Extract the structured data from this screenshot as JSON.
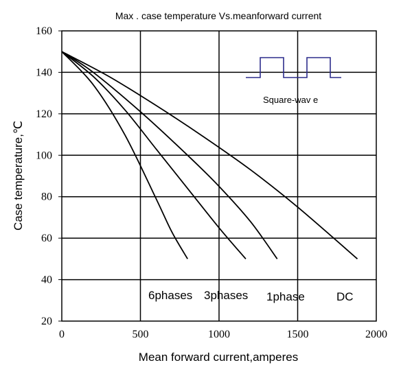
{
  "chart_data": {
    "type": "line",
    "title": "Max . case temperature Vs.meanforward current",
    "xlabel": "Mean  forward current,amperes",
    "ylabel": "Case temperature,℃",
    "xlim": [
      0,
      2000
    ],
    "ylim": [
      20,
      160
    ],
    "x_ticks": [
      0,
      500,
      1000,
      1500,
      2000
    ],
    "y_ticks": [
      20,
      40,
      60,
      80,
      100,
      120,
      140,
      160
    ],
    "grid": true,
    "series": [
      {
        "label": "6phases",
        "x": [
          0,
          200,
          400,
          600,
          700,
          800
        ],
        "y": [
          150,
          134,
          110,
          79,
          63,
          50
        ]
      },
      {
        "label": "3phases",
        "x": [
          0,
          200,
          400,
          600,
          800,
          1000,
          1170
        ],
        "y": [
          150,
          138,
          122,
          103,
          84,
          65,
          50
        ]
      },
      {
        "label": "1phase",
        "x": [
          0,
          200,
          500,
          800,
          1000,
          1200,
          1370
        ],
        "y": [
          150,
          140,
          121,
          100,
          85,
          68,
          50
        ]
      },
      {
        "label": "DC",
        "x": [
          0,
          300,
          600,
          900,
          1200,
          1500,
          1880
        ],
        "y": [
          150,
          138,
          124,
          109,
          93,
          75,
          50
        ]
      }
    ],
    "annotations": {
      "inset_label": "Square-wav e"
    }
  }
}
